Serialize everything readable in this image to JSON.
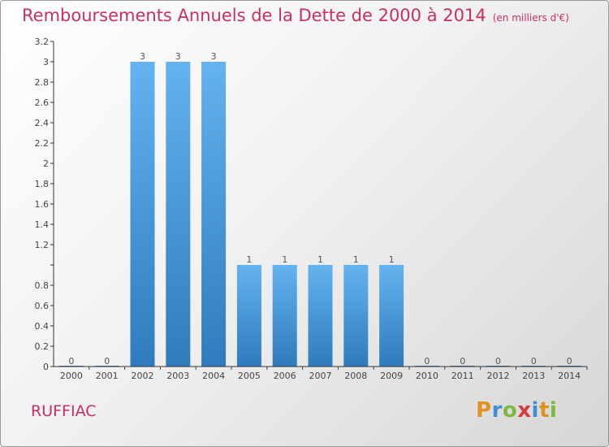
{
  "title": "Remboursements Annuels de la Dette de 2000 à 2014",
  "subtitle": "(en milliers d'€)",
  "place": "RUFFIAC",
  "logo": {
    "letters": [
      "P",
      "r",
      "o",
      "x",
      "i",
      "t",
      "i"
    ],
    "colors": [
      "#e0941e",
      "#3e8fd6",
      "#7db93d",
      "#d83b3b",
      "#3e8fd6",
      "#e0941e",
      "#7db93d"
    ]
  },
  "colors": {
    "title": "#c8305f",
    "bar_top": "#64b2ee",
    "bar_bottom": "#2f7bbd"
  },
  "chart_data": {
    "type": "bar",
    "title": "Remboursements Annuels de la Dette de 2000 à 2014",
    "subtitle": "(en milliers d'€)",
    "xlabel": "",
    "ylabel": "",
    "categories": [
      "2000",
      "2001",
      "2002",
      "2003",
      "2004",
      "2005",
      "2006",
      "2007",
      "2008",
      "2009",
      "2010",
      "2011",
      "2012",
      "2013",
      "2014"
    ],
    "values": [
      0,
      0,
      3,
      3,
      3,
      1,
      1,
      1,
      1,
      1,
      0,
      0,
      0,
      0,
      0
    ],
    "value_labels": [
      "0",
      "0",
      "3",
      "3",
      "3",
      "1",
      "1",
      "1",
      "1",
      "1",
      "0",
      "0",
      "0",
      "0",
      "0"
    ],
    "ylim": [
      0,
      3.2
    ],
    "yticks": [
      0,
      0.2,
      0.4,
      0.6,
      0.8,
      1,
      1.2,
      1.4,
      1.6,
      1.8,
      2,
      2.2,
      2.4,
      2.6,
      2.8,
      3,
      3.2
    ],
    "ytick_labels": [
      "0",
      "0.2",
      "0.4",
      "0.6",
      "0.8",
      "",
      "1.2",
      "1.4",
      "1.6",
      "1.8",
      "2",
      "2.2",
      "2.4",
      "2.6",
      "2.8",
      "3",
      "3.2"
    ],
    "grid": false,
    "legend": "none"
  }
}
